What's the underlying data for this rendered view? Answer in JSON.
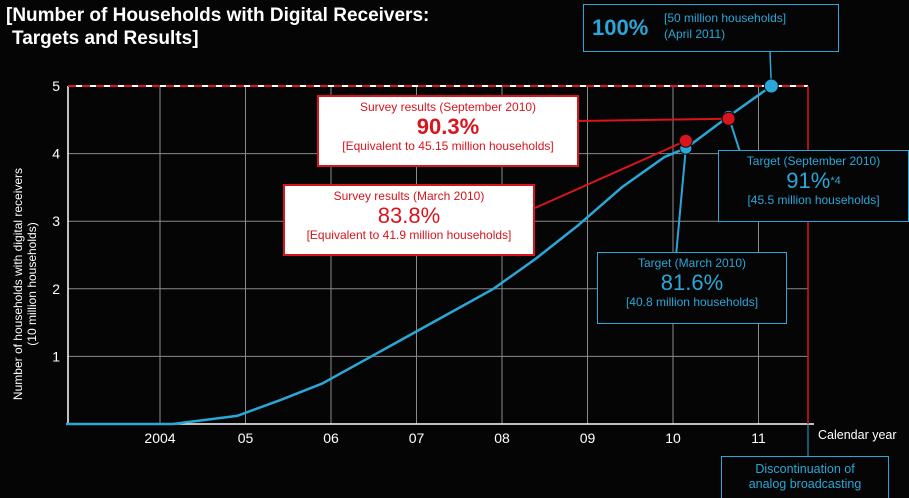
{
  "title": {
    "line1": "[Number of Households with Digital Receivers:",
    "line2": "Targets and Results]"
  },
  "chart_data": {
    "type": "line",
    "ylabel_line1": "Number of households with digital receivers",
    "ylabel_line2": "(10 million households)",
    "xlabel": "Calendar year",
    "ylim": [
      0,
      5
    ],
    "y_ticks": [
      "1",
      "2",
      "3",
      "4",
      "5"
    ],
    "x_ticks": [
      "2004",
      "05",
      "06",
      "07",
      "08",
      "09",
      "10",
      "11"
    ],
    "grid": true,
    "series": [
      {
        "role": "target",
        "color": "#2aa7d8",
        "x": [
          2003.0,
          2004.25,
          2005.0,
          2005.5,
          2006.0,
          2006.5,
          2007.0,
          2007.5,
          2008.0,
          2008.5,
          2009.0,
          2009.5,
          2010.0,
          2010.25,
          2010.75,
          2011.25
        ],
        "y": [
          0.0,
          0.0,
          0.12,
          0.35,
          0.6,
          0.95,
          1.3,
          1.65,
          2.0,
          2.45,
          2.95,
          3.5,
          3.95,
          4.08,
          4.55,
          5.0
        ]
      }
    ],
    "survey_points": [
      {
        "x": 2010.25,
        "y": 4.19,
        "color": "#d8141c"
      },
      {
        "x": 2010.75,
        "y": 4.515,
        "color": "#d8141c"
      }
    ],
    "target_points": [
      {
        "x": 2010.25,
        "y": 4.08,
        "color": "#2aa7d8"
      },
      {
        "x": 2010.75,
        "y": 4.55,
        "color": "#2aa7d8"
      },
      {
        "x": 2011.25,
        "y": 5.0,
        "color": "#2aa7d8"
      }
    ],
    "target_line": {
      "y": 5,
      "color": "#ffffff"
    },
    "deadline_line": {
      "x": 2011.54,
      "color": "#d8141c"
    }
  },
  "annotations": {
    "survey_sep": {
      "title": "Survey results (September 2010)",
      "value": "90.3%",
      "detail": "[Equivalent to 45.15 million households]"
    },
    "survey_mar": {
      "title": "Survey results (March 2010)",
      "value": "83.8%",
      "detail": "[Equivalent to 41.9 million households]"
    },
    "target_sep": {
      "title": "Target (September 2010)",
      "value": "91%",
      "footnote": "*4",
      "detail": "[45.5 million households]"
    },
    "target_mar": {
      "title": "Target (March 2010)",
      "value": "81.6%",
      "detail": "[40.8 million households]"
    },
    "goal": {
      "value": "100%",
      "detail_line1": "[50 million households]",
      "detail_line2": "(April 2011)"
    },
    "analog_end": {
      "line1": "Discontinuation of",
      "line2": "analog broadcasting"
    }
  }
}
